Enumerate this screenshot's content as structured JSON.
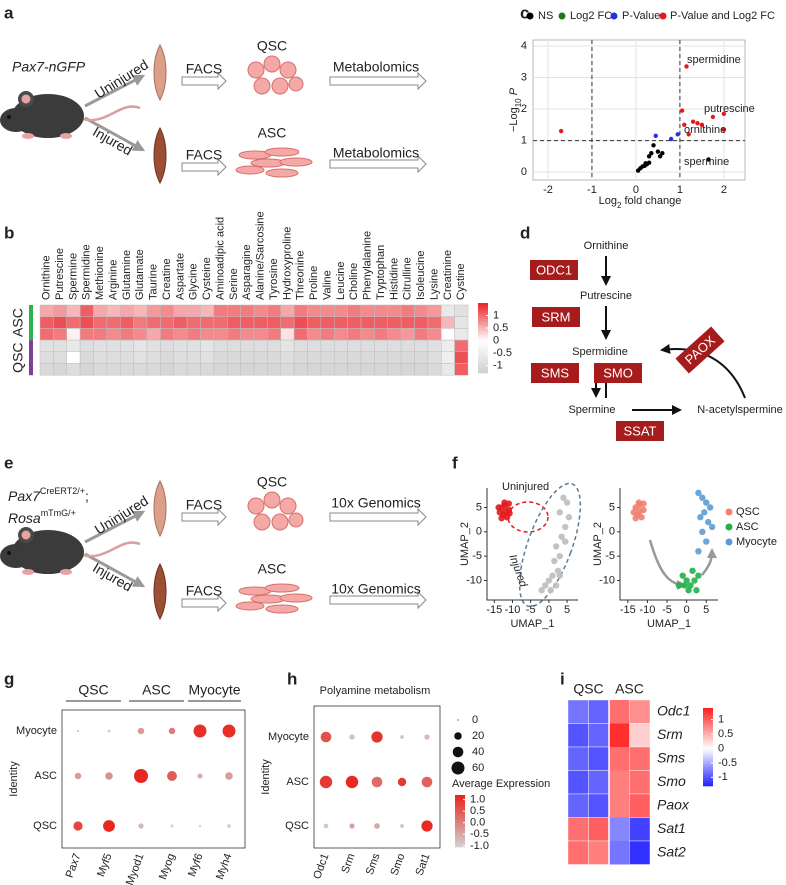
{
  "letters": [
    "a",
    "b",
    "c",
    "d",
    "e",
    "f",
    "g",
    "h",
    "i"
  ],
  "a": {
    "strain": "Pax7-nGFP",
    "conditions": [
      "Uninjured",
      "Injured"
    ],
    "methods": [
      "FACS",
      "FACS"
    ],
    "cells": [
      "QSC",
      "ASC"
    ],
    "assays": [
      "Metabolomics",
      "Metabolomics"
    ]
  },
  "b": {
    "type": "heatmap",
    "columns": [
      "Ornithine",
      "Putrescine",
      "Spermine",
      "Spermidine",
      "Methionine",
      "Arginine",
      "Glutamine",
      "Glutamate",
      "Taurine",
      "Creatine",
      "Aspartate",
      "Glycine",
      "Cysteine",
      "Aminoadipic acid",
      "Serine",
      "Asparagine",
      "Alanine/Sarcosine",
      "Tyrosine",
      "Hydroxyproline",
      "Threonine",
      "Proline",
      "Valine",
      "Leucine",
      "Choline",
      "Phenylalanine",
      "Tryptophan",
      "Histidine",
      "Citrulline",
      "Isoleucine",
      "Lysine",
      "Creatinine",
      "Cystine"
    ],
    "groups": [
      {
        "name": "ASC",
        "color": "#2db34a",
        "rows": [
          [
            0.6,
            0.7,
            0.5,
            1.1,
            0.6,
            0.5,
            0.6,
            0.5,
            0.7,
            0.8,
            0.6,
            0.6,
            0.5,
            0.9,
            0.9,
            0.9,
            0.8,
            0.9,
            0.6,
            0.9,
            0.8,
            0.8,
            0.8,
            0.9,
            0.8,
            0.8,
            0.8,
            0.9,
            0.8,
            0.7,
            -0.6,
            -0.8
          ],
          [
            1.1,
            1.2,
            1.0,
            1.2,
            1.0,
            1.0,
            1.1,
            0.9,
            1.0,
            1.0,
            1.1,
            1.0,
            1.0,
            1.0,
            1.1,
            1.1,
            1.1,
            1.1,
            1.0,
            1.2,
            1.1,
            1.1,
            1.1,
            1.1,
            1.1,
            1.1,
            1.1,
            1.1,
            1.1,
            1.0,
            0.5,
            -0.7
          ],
          [
            1.0,
            0.9,
            0.1,
            0.9,
            0.9,
            0.8,
            0.9,
            0.8,
            0.6,
            0.9,
            0.8,
            0.9,
            0.8,
            0.8,
            0.9,
            0.8,
            0.8,
            0.9,
            0.2,
            1.0,
            0.8,
            0.9,
            0.8,
            0.9,
            0.8,
            0.9,
            0.8,
            0.7,
            0.9,
            0.8,
            0.0,
            -0.6
          ]
        ]
      },
      {
        "name": "QSC",
        "color": "#7b3f9e",
        "rows": [
          [
            -0.8,
            -0.8,
            -0.6,
            -0.9,
            -0.8,
            -0.8,
            -0.8,
            -0.7,
            -0.8,
            -0.9,
            -0.8,
            -0.8,
            -0.7,
            -0.9,
            -0.9,
            -0.9,
            -0.9,
            -0.9,
            -0.7,
            -0.9,
            -0.9,
            -0.9,
            -0.9,
            -0.9,
            -0.9,
            -0.9,
            -0.9,
            -0.9,
            -0.9,
            -0.8,
            -0.5,
            1.0
          ],
          [
            -0.9,
            -0.9,
            0.0,
            -1.0,
            -0.9,
            -0.9,
            -0.9,
            -0.8,
            -0.9,
            -1.0,
            -0.9,
            -0.9,
            -0.8,
            -1.0,
            -1.0,
            -1.0,
            -1.0,
            -1.0,
            -0.9,
            -1.0,
            -1.0,
            -1.0,
            -1.0,
            -1.0,
            -1.0,
            -1.0,
            -1.0,
            -1.0,
            -1.0,
            -0.9,
            -0.4,
            1.2
          ],
          [
            -1.0,
            -1.1,
            -0.9,
            -1.1,
            -1.0,
            -1.0,
            -1.0,
            -1.0,
            -1.0,
            -1.1,
            -1.0,
            -1.0,
            -1.0,
            -1.1,
            -1.1,
            -1.1,
            -1.1,
            -1.1,
            -1.0,
            -1.1,
            -1.1,
            -1.1,
            -1.1,
            -1.1,
            -1.1,
            -1.1,
            -1.1,
            -1.1,
            -1.1,
            -1.0,
            -0.6,
            1.1
          ]
        ]
      }
    ],
    "colorbar": {
      "colors": [
        "#cfcfcf",
        "#ffffff",
        "#e8232a"
      ],
      "lim": [
        -1.3,
        1.5
      ],
      "ticks": [
        1,
        0.5,
        0,
        -0.5,
        -1
      ]
    }
  },
  "c": {
    "type": "scatter",
    "grid": true,
    "xlim": [
      -2.34,
      2.48
    ],
    "ylim": [
      -0.25,
      4.19
    ],
    "xticks": [
      -2,
      -1,
      0,
      1,
      2
    ],
    "yticks": [
      0,
      1,
      2,
      3,
      4
    ],
    "xlabel": [
      "Log",
      "2",
      " fold change"
    ],
    "ylabel": [
      "−Log",
      "10",
      " ",
      "P"
    ],
    "thresholds": {
      "x": [
        -1,
        1
      ],
      "y": [
        1
      ]
    },
    "series": [
      {
        "name": "NS",
        "color": "#000000",
        "x": [
          0.05,
          0.1,
          0.15,
          0.2,
          0.22,
          0.25,
          0.3,
          0.3,
          0.35,
          0.4,
          0.5,
          0.55,
          0.6,
          1.65
        ],
        "y": [
          0.05,
          0.12,
          0.18,
          0.2,
          0.28,
          0.25,
          0.3,
          0.5,
          0.6,
          0.85,
          0.65,
          0.5,
          0.6,
          0.4
        ]
      },
      {
        "name": "Log2 FC",
        "color": "#1a7a1a",
        "x": [],
        "y": []
      },
      {
        "name": "P-Value",
        "color": "#2233dd",
        "x": [
          0.45,
          0.8,
          0.95
        ],
        "y": [
          1.15,
          1.05,
          1.2
        ]
      },
      {
        "name": "P-Value and Log2 FC",
        "color": "#e41a1c",
        "x": [
          -1.7,
          1.15,
          1.05,
          1.2,
          1.3,
          1.5,
          1.1,
          1.75,
          2.0,
          2.0,
          1.4
        ],
        "y": [
          1.3,
          3.35,
          1.95,
          1.2,
          1.6,
          1.5,
          1.5,
          1.75,
          1.85,
          1.35,
          1.55
        ]
      }
    ],
    "annotations": [
      "spermidine",
      "putrescine",
      "ornithine",
      "spermine"
    ]
  },
  "d": {
    "metabolites": [
      "Ornithine",
      "Putrescine",
      "Spermidine",
      "Spermine",
      "N-acetylspermine"
    ],
    "enzymes": [
      "ODC1",
      "SRM",
      "SMS",
      "SMO",
      "PAOX",
      "SSAT"
    ]
  },
  "e": {
    "strain": [
      [
        "Pax7",
        "CreERT2/+",
        ";"
      ],
      [
        "Rosa",
        "mTmG/+"
      ]
    ],
    "conditions": [
      "Uninjured",
      "Injured"
    ],
    "methods": [
      "FACS",
      "FACS"
    ],
    "cells": [
      "QSC",
      "ASC"
    ],
    "assays": [
      "10x Genomics",
      "10x Genomics"
    ]
  },
  "f": {
    "plots": [
      {
        "type": "scatter",
        "xlabel": "UMAP_1",
        "ylabel": "UMAP_2",
        "xlim": [
          -17,
          8
        ],
        "ylim": [
          -14,
          9
        ],
        "xticks": [
          -15,
          -10,
          -5,
          0,
          5
        ],
        "yticks": [
          5,
          0,
          -5,
          -10
        ],
        "labels": [
          "Uninjured",
          "Injured"
        ],
        "series": [
          {
            "color": "#e41a1c",
            "x": [
              -13,
              -12,
              -11,
              -12.5,
              -13.5,
              -11.5,
              -12,
              -13,
              -11,
              -12.2,
              -13.8,
              -10.8
            ],
            "y": [
              5,
              5.5,
              4.5,
              3.5,
              4,
              3,
              4.2,
              2.8,
              5.8,
              6,
              5,
              3.8
            ]
          },
          {
            "color": "#bdbdbd",
            "x": [
              4,
              5,
              3,
              5.5,
              4.5,
              3.5,
              2,
              3,
              1.5,
              2.5,
              1,
              0,
              -1,
              -2,
              0.5,
              2,
              3,
              4.5
            ],
            "y": [
              7,
              6,
              4,
              3,
              1,
              -1,
              -3,
              -5,
              -6,
              -8,
              -9,
              -10,
              -11,
              -12,
              -12,
              -11,
              -9,
              -2
            ]
          }
        ]
      },
      {
        "type": "scatter",
        "xlabel": "UMAP_1",
        "ylabel": "UMAP_2",
        "xlim": [
          -17,
          8
        ],
        "ylim": [
          -14,
          9
        ],
        "xticks": [
          -15,
          -10,
          -5,
          0,
          5
        ],
        "yticks": [
          5,
          0,
          -5,
          -10
        ],
        "series": [
          {
            "name": "QSC",
            "color": "#f08070",
            "x": [
              -13,
              -12,
              -11,
              -12.5,
              -13.5,
              -11.5,
              -12,
              -13,
              -11,
              -12.2
            ],
            "y": [
              5,
              5.5,
              4.5,
              3.5,
              4,
              3,
              4.2,
              2.8,
              5.8,
              6
            ]
          },
          {
            "name": "ASC",
            "color": "#22b14c",
            "x": [
              -1,
              0,
              1,
              2,
              3,
              -2,
              0.5,
              1.5,
              2.5,
              -0.5
            ],
            "y": [
              -9,
              -10,
              -11,
              -10,
              -9,
              -11,
              -12,
              -8,
              -12,
              -11
            ]
          },
          {
            "name": "Myocyte",
            "color": "#5b9bd5",
            "x": [
              3,
              4,
              5,
              6,
              4.5,
              3.5,
              5.5,
              6.5,
              4,
              5,
              3
            ],
            "y": [
              8,
              7,
              6,
              5,
              4,
              3,
              2,
              1,
              0,
              -2,
              -4
            ]
          }
        ]
      }
    ]
  },
  "g": {
    "type": "dot",
    "groups": [
      "QSC",
      "ASC",
      "Myocyte"
    ],
    "genes": [
      "Pax7",
      "Myf5",
      "Myod1",
      "Myog",
      "Myf6",
      "Myh4"
    ],
    "identities": [
      "Myocyte",
      "ASC",
      "QSC"
    ],
    "ylabel": "Identity",
    "pct": [
      [
        2,
        3,
        15,
        15,
        60,
        60
      ],
      [
        15,
        20,
        70,
        35,
        10,
        20
      ],
      [
        30,
        50,
        10,
        3,
        2,
        5
      ]
    ],
    "avg": [
      [
        -1,
        -1,
        -0.3,
        0.1,
        1.1,
        1.1
      ],
      [
        -0.3,
        -0.2,
        1.2,
        0.5,
        -0.6,
        -0.3
      ],
      [
        0.8,
        1.2,
        -0.7,
        -1,
        -1,
        -1
      ]
    ],
    "colors": [
      "#d3d3d3",
      "#e8231b"
    ],
    "color_lim": [
      -1.05,
      1.25
    ]
  },
  "h": {
    "type": "dot",
    "title": "Polyamine metabolism",
    "genes": [
      "Odc1",
      "Srm",
      "Sms",
      "Smo",
      "Sat1"
    ],
    "identities": [
      "Myocyte",
      "ASC",
      "QSC"
    ],
    "ylabel": "Identity",
    "pct": [
      [
        40,
        10,
        45,
        5,
        10
      ],
      [
        55,
        55,
        40,
        25,
        40
      ],
      [
        8,
        10,
        12,
        5,
        45
      ]
    ],
    "avg": [
      [
        0.6,
        -0.8,
        1.0,
        -0.9,
        -0.7
      ],
      [
        0.9,
        1.1,
        0.3,
        0.9,
        0.4
      ],
      [
        -0.9,
        -0.4,
        -0.5,
        -0.8,
        1.1
      ]
    ],
    "size_ticks": [
      0,
      20,
      40,
      60
    ],
    "color_title": "Average Expression",
    "color_ticks": [
      {
        "value": 1,
        "label": "1.0"
      },
      {
        "value": 0.5,
        "label": "0.5"
      },
      {
        "value": 0,
        "label": "0.0"
      },
      {
        "value": -0.5,
        "label": "-0.5"
      },
      {
        "value": -1,
        "label": "-1.0"
      }
    ],
    "colors": [
      "#d3d3d3",
      "#e8231b"
    ],
    "color_lim": [
      -1.05,
      1.2
    ]
  },
  "i": {
    "type": "heatmap",
    "column_groups": [
      "QSC",
      "ASC"
    ],
    "genes": [
      "Odc1",
      "Srm",
      "Sms",
      "Smo",
      "Paox",
      "Sat1",
      "Sat2"
    ],
    "values": [
      [
        -0.8,
        -0.9,
        0.9,
        0.7
      ],
      [
        -1,
        -0.9,
        1.3,
        0.3
      ],
      [
        -0.9,
        -1,
        0.9,
        0.9
      ],
      [
        -1,
        -0.9,
        0.8,
        0.9
      ],
      [
        -0.9,
        -1,
        0.8,
        1.0
      ],
      [
        0.9,
        1.0,
        -0.7,
        -1.1
      ],
      [
        0.9,
        0.8,
        -0.8,
        -1.2
      ]
    ],
    "colorbar": {
      "colors": [
        "#1f1fff",
        "#ffffff",
        "#ff1f1f"
      ],
      "lim": [
        -1.3,
        1.4
      ],
      "ticks": [
        1,
        0.5,
        0,
        -0.5,
        -1
      ]
    }
  }
}
